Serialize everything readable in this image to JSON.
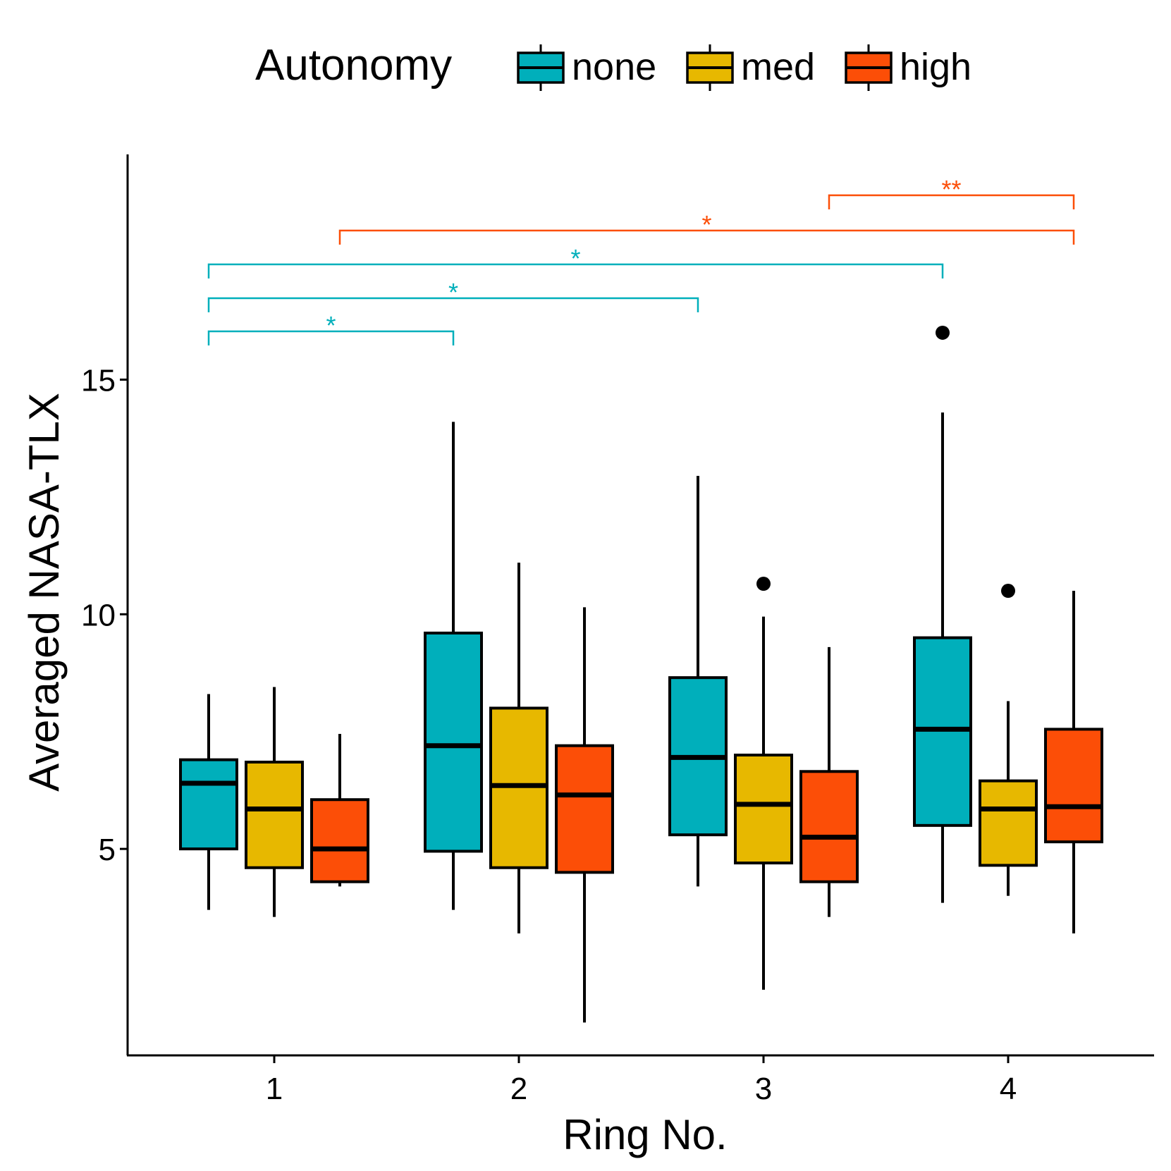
{
  "chart_data": {
    "type": "box",
    "title": "",
    "xlabel": "Ring No.",
    "ylabel": "Averaged NASA-TLX",
    "ylim": [
      0.6,
      19.8
    ],
    "yticks": [
      5,
      10,
      15
    ],
    "ytick_labels": [
      "5",
      "10",
      "15"
    ],
    "categories": [
      "1",
      "2",
      "3",
      "4"
    ],
    "legend": {
      "title": "Autonomy",
      "position": "top"
    },
    "series": [
      {
        "name": "none",
        "color": "#00AFBB",
        "boxes": [
          {
            "min": 3.7,
            "q1": 5.0,
            "median": 6.4,
            "q3": 6.9,
            "max": 8.3,
            "outliers": []
          },
          {
            "min": 3.7,
            "q1": 4.95,
            "median": 7.2,
            "q3": 9.6,
            "max": 14.1,
            "outliers": []
          },
          {
            "min": 4.2,
            "q1": 5.3,
            "median": 6.95,
            "q3": 8.65,
            "max": 12.95,
            "outliers": []
          },
          {
            "min": 3.85,
            "q1": 5.5,
            "median": 7.55,
            "q3": 9.5,
            "max": 14.3,
            "outliers": [
              16.0
            ]
          }
        ]
      },
      {
        "name": "med",
        "color": "#E7B800",
        "boxes": [
          {
            "min": 3.55,
            "q1": 4.6,
            "median": 5.85,
            "q3": 6.85,
            "max": 8.45,
            "outliers": []
          },
          {
            "min": 3.2,
            "q1": 4.6,
            "median": 6.35,
            "q3": 8.0,
            "max": 11.1,
            "outliers": []
          },
          {
            "min": 2.0,
            "q1": 4.7,
            "median": 5.95,
            "q3": 7.0,
            "max": 9.95,
            "outliers": [
              10.65
            ]
          },
          {
            "min": 4.0,
            "q1": 4.65,
            "median": 5.85,
            "q3": 6.45,
            "max": 8.15,
            "outliers": [
              10.5
            ]
          }
        ]
      },
      {
        "name": "high",
        "color": "#FC4E07",
        "boxes": [
          {
            "min": 4.2,
            "q1": 4.3,
            "median": 5.0,
            "q3": 6.05,
            "max": 7.45,
            "outliers": []
          },
          {
            "min": 1.3,
            "q1": 4.5,
            "median": 6.15,
            "q3": 7.2,
            "max": 10.15,
            "outliers": []
          },
          {
            "min": 3.55,
            "q1": 4.3,
            "median": 5.25,
            "q3": 6.65,
            "max": 9.3,
            "outliers": []
          },
          {
            "min": 3.2,
            "q1": 5.15,
            "median": 5.9,
            "q3": 7.55,
            "max": 10.5,
            "outliers": []
          }
        ]
      }
    ],
    "annotations": [
      {
        "group": "none",
        "from": "1",
        "to": "2",
        "label": "*",
        "color": "#00AFBB"
      },
      {
        "group": "none",
        "from": "1",
        "to": "3",
        "label": "*",
        "color": "#00AFBB"
      },
      {
        "group": "none",
        "from": "1",
        "to": "4",
        "label": "*",
        "color": "#00AFBB"
      },
      {
        "group": "high",
        "from": "1",
        "to": "4",
        "label": "*",
        "color": "#FC4E07"
      },
      {
        "group": "high",
        "from": "3",
        "to": "4",
        "label": "**",
        "color": "#FC4E07"
      }
    ]
  }
}
